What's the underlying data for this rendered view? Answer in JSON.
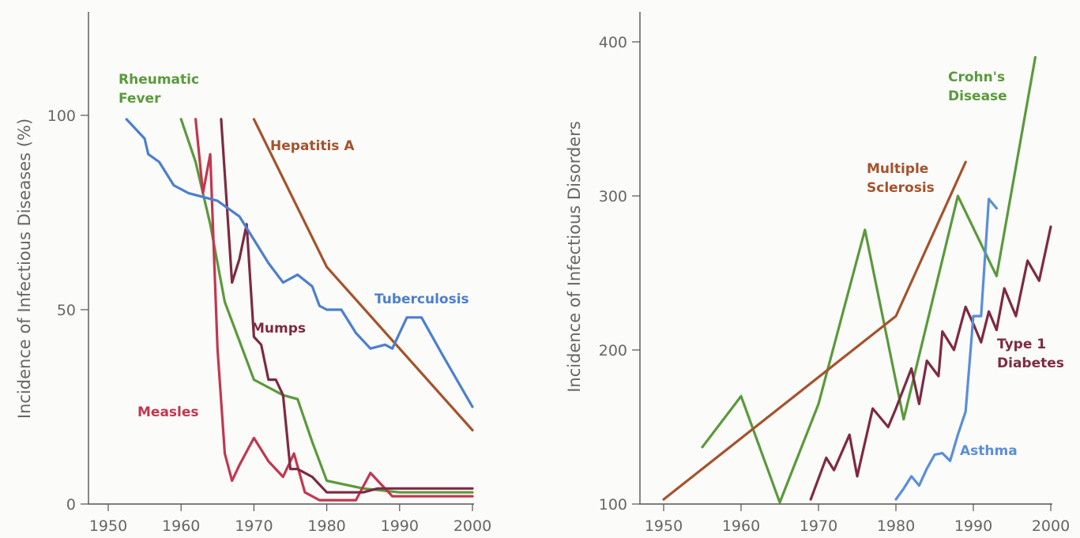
{
  "chart_data": [
    {
      "type": "line",
      "ylabel": "Incidence of Infectious Diseases (%)",
      "xlabel": "",
      "xlim": [
        1950,
        2000
      ],
      "ylim": [
        0,
        125
      ],
      "xticks": [
        1950,
        1960,
        1970,
        1980,
        1990,
        2000
      ],
      "yticks": [
        0,
        50,
        100
      ],
      "grid": false,
      "legend": "inline labels",
      "series": [
        {
          "name": "Rheumatic Fever",
          "label_lines": [
            "Rheumatic",
            "Fever"
          ],
          "color": "#5a9a3c",
          "x": [
            1960,
            1962,
            1964,
            1966,
            1968,
            1970,
            1972,
            1974,
            1976,
            1978,
            1980,
            1985,
            1990,
            1995,
            2000
          ],
          "y": [
            99,
            88,
            72,
            52,
            42,
            32,
            30,
            28,
            27,
            16,
            6,
            4,
            3,
            3,
            3
          ]
        },
        {
          "name": "Measles",
          "label_lines": [
            "Measles"
          ],
          "color": "#c2374e",
          "x": [
            1962,
            1963,
            1964,
            1965,
            1966,
            1967,
            1968,
            1970,
            1972,
            1974,
            1975.5,
            1977,
            1979,
            1982,
            1984,
            1986,
            1987,
            1989,
            2000
          ],
          "y": [
            99,
            80,
            90,
            40,
            13,
            6,
            10,
            17,
            11,
            7,
            13,
            3,
            1,
            1,
            1,
            8,
            6,
            2,
            2
          ]
        },
        {
          "name": "Mumps",
          "label_lines": [
            "Mumps"
          ],
          "color": "#7d2a45",
          "x": [
            1965.5,
            1967,
            1968,
            1969,
            1970,
            1971,
            1972,
            1973,
            1974,
            1975,
            1976,
            1978,
            1980,
            1985,
            1987,
            1990,
            2000
          ],
          "y": [
            99,
            57,
            63,
            72,
            43,
            41,
            32,
            32,
            28,
            9,
            9,
            7,
            3,
            3,
            4,
            4,
            4
          ]
        },
        {
          "name": "Hepatitis A",
          "label_lines": [
            "Hepatitis A"
          ],
          "color": "#a4532d",
          "x": [
            1970,
            1980,
            2000
          ],
          "y": [
            99,
            61,
            19
          ]
        },
        {
          "name": "Tuberculosis",
          "label_lines": [
            "Tuberculosis"
          ],
          "color": "#4c7fce",
          "x": [
            1952.5,
            1955,
            1955.5,
            1957,
            1959,
            1961,
            1963,
            1965,
            1968,
            1970,
            1972,
            1974,
            1976,
            1978,
            1979,
            1980,
            1982,
            1984,
            1986,
            1988,
            1989,
            1991,
            1993,
            1996,
            2000
          ],
          "y": [
            99,
            94,
            90,
            88,
            82,
            80,
            79,
            78,
            74,
            68,
            62,
            57,
            59,
            56,
            51,
            50,
            50,
            44,
            40,
            41,
            40,
            48,
            48,
            38,
            25
          ]
        }
      ]
    },
    {
      "type": "line",
      "ylabel": "Incidence of Infectious Disorders",
      "xlabel": "",
      "xlim": [
        1950,
        2000
      ],
      "ylim": [
        100,
        420
      ],
      "xticks": [
        1950,
        1960,
        1970,
        1980,
        1990,
        2000
      ],
      "yticks": [
        100,
        200,
        300,
        400
      ],
      "grid": false,
      "legend": "inline labels",
      "series": [
        {
          "name": "Crohn's Disease",
          "label_lines": [
            "Crohn's",
            "Disease"
          ],
          "color": "#5a9a3c",
          "x": [
            1955,
            1960,
            1965,
            1970,
            1976,
            1981,
            1988,
            1993,
            1998
          ],
          "y": [
            137,
            170,
            101,
            165,
            278,
            155,
            300,
            248,
            390
          ]
        },
        {
          "name": "Multiple Sclerosis",
          "label_lines": [
            "Multiple",
            "Sclerosis"
          ],
          "color": "#a4532d",
          "x": [
            1950,
            1980,
            1989
          ],
          "y": [
            103,
            222,
            322
          ]
        },
        {
          "name": "Type 1 Diabetes",
          "label_lines": [
            "Type 1",
            "Diabetes"
          ],
          "color": "#7d2a45",
          "x": [
            1969,
            1971,
            1972,
            1974,
            1975,
            1977,
            1979,
            1980,
            1982,
            1983,
            1984,
            1985.5,
            1986,
            1987.5,
            1989,
            1990,
            1991,
            1992,
            1993,
            1994,
            1995.5,
            1997,
            1998.5,
            2000
          ],
          "y": [
            103,
            130,
            122,
            145,
            118,
            162,
            150,
            162,
            188,
            165,
            193,
            183,
            212,
            200,
            228,
            217,
            205,
            225,
            213,
            240,
            222,
            258,
            245,
            280
          ]
        },
        {
          "name": "Asthma",
          "label_lines": [
            "Asthma"
          ],
          "color": "#5a8ed8",
          "x": [
            1980,
            1981,
            1982,
            1983,
            1984,
            1985,
            1986,
            1987,
            1988,
            1989,
            1990,
            1991,
            1992,
            1993
          ],
          "y": [
            103,
            110,
            118,
            112,
            123,
            132,
            133,
            128,
            145,
            160,
            222,
            222,
            298,
            292
          ]
        }
      ]
    }
  ]
}
